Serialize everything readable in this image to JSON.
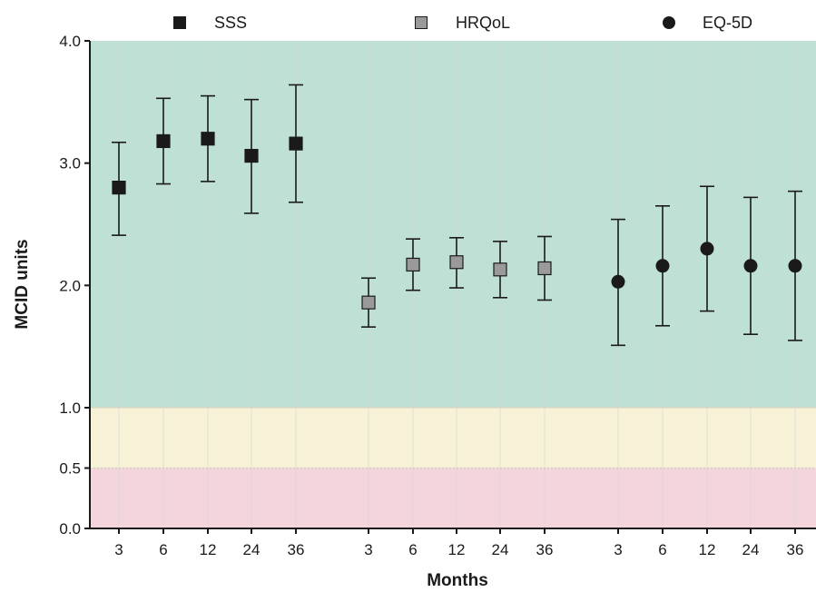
{
  "chart_data": {
    "type": "scatter",
    "xlabel": "Months",
    "ylabel": "MCID units",
    "ylim": [
      0,
      4
    ],
    "y_ticks": [
      0.0,
      0.5,
      1.0,
      2.0,
      3.0,
      4.0
    ],
    "y_tick_labels": [
      "0.0",
      "0.5",
      "1.0",
      "2.0",
      "3.0",
      "4.0"
    ],
    "x_categories": [
      "3",
      "6",
      "12",
      "24",
      "36",
      "3",
      "6",
      "12",
      "24",
      "36",
      "3",
      "6",
      "12",
      "24",
      "36"
    ],
    "legend_position": "top",
    "bands": [
      {
        "from": 1.0,
        "to": 4.0,
        "color": "#bfe0d4"
      },
      {
        "from": 0.5,
        "to": 1.0,
        "color": "#f7f1d8"
      },
      {
        "from": 0.0,
        "to": 0.5,
        "color": "#f5d5dc"
      }
    ],
    "series": [
      {
        "name": "SSS",
        "marker": "square",
        "color": "#1a1a1a",
        "months": [
          "3",
          "6",
          "12",
          "24",
          "36"
        ],
        "values": [
          2.8,
          3.18,
          3.2,
          3.06,
          3.16
        ],
        "lower": [
          2.41,
          2.83,
          2.85,
          2.59,
          2.68
        ],
        "upper": [
          3.17,
          3.53,
          3.55,
          3.52,
          3.64
        ]
      },
      {
        "name": "HRQoL",
        "marker": "square",
        "color": "#9a9a9a",
        "months": [
          "3",
          "6",
          "12",
          "24",
          "36"
        ],
        "values": [
          1.86,
          2.17,
          2.19,
          2.13,
          2.14
        ],
        "lower": [
          1.66,
          1.96,
          1.98,
          1.9,
          1.88
        ],
        "upper": [
          2.06,
          2.38,
          2.39,
          2.36,
          2.4
        ]
      },
      {
        "name": "EQ-5D",
        "marker": "circle",
        "color": "#1a1a1a",
        "months": [
          "3",
          "6",
          "12",
          "24",
          "36"
        ],
        "values": [
          2.03,
          2.16,
          2.3,
          2.16,
          2.16
        ],
        "lower": [
          1.51,
          1.67,
          1.79,
          1.6,
          1.55
        ],
        "upper": [
          2.54,
          2.65,
          2.81,
          2.72,
          2.77
        ]
      }
    ]
  }
}
